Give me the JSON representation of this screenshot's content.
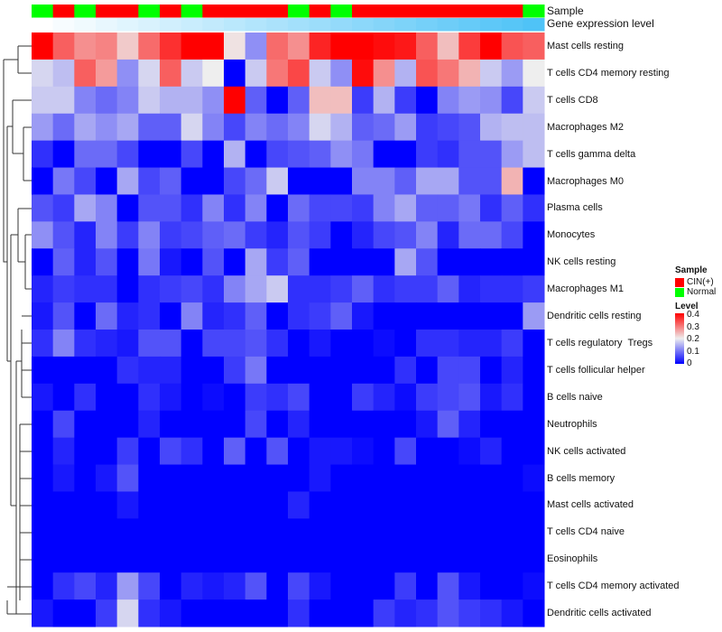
{
  "chart_data": {
    "type": "heatmap",
    "annotations": {
      "sample_label": "Sample",
      "expression_label": "Gene expression level",
      "sample": [
        "Normal",
        "CIN(+)",
        "Normal",
        "CIN(+)",
        "CIN(+)",
        "Normal",
        "CIN(+)",
        "Normal",
        "CIN(+)",
        "CIN(+)",
        "CIN(+)",
        "CIN(+)",
        "Normal",
        "CIN(+)",
        "Normal",
        "CIN(+)",
        "CIN(+)",
        "CIN(+)",
        "CIN(+)",
        "CIN(+)",
        "CIN(+)",
        "CIN(+)",
        "CIN(+)",
        "Normal"
      ],
      "expression_rank": [
        0,
        1,
        2,
        3,
        4,
        5,
        6,
        7,
        8,
        9,
        10,
        11,
        12,
        13,
        14,
        15,
        16,
        17,
        18,
        19,
        20,
        21,
        22,
        23
      ]
    },
    "rows": [
      "Mast cells resting",
      "T cells CD4 memory resting",
      "T cells CD8",
      "Macrophages M2",
      "T cells gamma delta",
      "Macrophages M0",
      "Plasma cells",
      "Monocytes",
      "NK cells resting",
      "Macrophages M1",
      "Dendritic cells resting",
      "T cells regulatory  Tregs",
      "T cells follicular helper",
      "B cells naive",
      "Neutrophils",
      "NK cells activated",
      "B cells memory",
      "Mast cells activated",
      "T cells CD4 naive",
      "Eosinophils",
      "T cells CD4 memory activated",
      "Dendritic cells activated"
    ],
    "values": [
      [
        0.4,
        0.32,
        0.28,
        0.29,
        0.23,
        0.31,
        0.36,
        0.4,
        0.4,
        0.21,
        0.12,
        0.31,
        0.28,
        0.37,
        0.4,
        0.4,
        0.39,
        0.38,
        0.32,
        0.24,
        0.35,
        0.4,
        0.33,
        0.32
      ],
      [
        0.18,
        0.16,
        0.32,
        0.27,
        0.12,
        0.18,
        0.32,
        0.17,
        0.2,
        0,
        0.17,
        0.3,
        0.34,
        0.17,
        0.12,
        0.39,
        0.28,
        0.15,
        0.33,
        0.3,
        0.25,
        0.17,
        0.13,
        0.2
      ],
      [
        0.17,
        0.17,
        0.11,
        0.09,
        0.11,
        0.17,
        0.15,
        0.15,
        0.12,
        0.4,
        0.08,
        0,
        0.08,
        0.24,
        0.24,
        0.05,
        0.15,
        0.05,
        0,
        0.11,
        0.13,
        0.12,
        0.06,
        0.17
      ],
      [
        0.13,
        0.09,
        0.14,
        0.12,
        0.14,
        0.08,
        0.08,
        0.18,
        0.11,
        0.06,
        0.11,
        0.09,
        0.11,
        0.18,
        0.15,
        0.08,
        0.09,
        0.13,
        0.05,
        0.06,
        0.07,
        0.15,
        0.16,
        0.16
      ],
      [
        0.04,
        0,
        0.09,
        0.09,
        0.06,
        0,
        0,
        0.06,
        0,
        0.15,
        0,
        0.06,
        0.07,
        0.08,
        0.12,
        0.1,
        0,
        0,
        0.05,
        0.04,
        0.07,
        0.07,
        0.13,
        0.16
      ],
      [
        0,
        0.1,
        0.06,
        0,
        0.14,
        0.06,
        0.08,
        0,
        0,
        0.06,
        0.09,
        0.17,
        0,
        0,
        0,
        0.11,
        0.11,
        0.08,
        0.14,
        0.14,
        0.07,
        0.07,
        0.25,
        0
      ],
      [
        0.07,
        0.05,
        0.14,
        0.11,
        0,
        0.07,
        0.07,
        0.04,
        0.11,
        0.04,
        0.11,
        0,
        0.09,
        0.06,
        0.06,
        0.05,
        0.11,
        0.14,
        0.08,
        0.08,
        0.1,
        0.04,
        0.08,
        0.04
      ],
      [
        0.12,
        0.07,
        0.03,
        0.11,
        0.05,
        0.11,
        0.05,
        0.06,
        0.08,
        0.09,
        0.05,
        0.03,
        0.07,
        0.05,
        0,
        0.03,
        0.06,
        0.07,
        0.11,
        0.03,
        0.09,
        0.09,
        0.06,
        0
      ],
      [
        0,
        0.08,
        0.03,
        0.07,
        0,
        0.1,
        0.02,
        0,
        0.07,
        0,
        0.14,
        0.05,
        0.08,
        0,
        0,
        0,
        0,
        0.14,
        0.07,
        0,
        0,
        0,
        0,
        0
      ],
      [
        0.03,
        0.05,
        0.04,
        0.04,
        0,
        0.04,
        0.05,
        0.06,
        0.04,
        0.11,
        0.14,
        0.17,
        0.04,
        0.04,
        0.05,
        0.08,
        0.04,
        0.05,
        0.05,
        0.08,
        0.03,
        0.04,
        0.04,
        0.05
      ],
      [
        0.02,
        0.07,
        0,
        0.09,
        0.03,
        0.04,
        0,
        0.11,
        0.03,
        0.04,
        0.08,
        0,
        0.04,
        0.05,
        0.08,
        0.02,
        0,
        0,
        0,
        0,
        0,
        0,
        0,
        0.13
      ],
      [
        0.04,
        0.11,
        0.04,
        0.03,
        0.02,
        0.07,
        0.07,
        0,
        0.06,
        0.06,
        0.07,
        0.04,
        0,
        0.02,
        0,
        0,
        0.01,
        0,
        0.04,
        0.04,
        0.03,
        0.03,
        0.05,
        0
      ],
      [
        0,
        0,
        0,
        0,
        0.04,
        0.03,
        0.03,
        0,
        0,
        0.05,
        0.1,
        0,
        0,
        0,
        0,
        0,
        0,
        0.04,
        0,
        0.06,
        0.06,
        0,
        0.03,
        0
      ],
      [
        0.02,
        0,
        0.04,
        0,
        0,
        0.04,
        0.02,
        0,
        0.01,
        0,
        0.05,
        0.04,
        0.06,
        0,
        0,
        0.05,
        0.03,
        0.01,
        0.05,
        0.06,
        0.07,
        0.02,
        0.04,
        0
      ],
      [
        0,
        0.06,
        0,
        0,
        0,
        0.03,
        0,
        0,
        0,
        0,
        0.06,
        0,
        0.03,
        0,
        0,
        0,
        0,
        0,
        0.02,
        0.08,
        0.03,
        0,
        0,
        0
      ],
      [
        0,
        0.03,
        0,
        0,
        0.05,
        0,
        0.06,
        0.04,
        0,
        0.08,
        0,
        0.07,
        0,
        0.02,
        0.02,
        0.01,
        0,
        0.06,
        0,
        0,
        0.01,
        0.03,
        0,
        0
      ],
      [
        0,
        0.02,
        0,
        0.02,
        0.07,
        0,
        0,
        0,
        0,
        0,
        0,
        0,
        0,
        0.02,
        0,
        0,
        0,
        0,
        0,
        0,
        0,
        0,
        0,
        0.01
      ],
      [
        0,
        0,
        0,
        0,
        0.02,
        0,
        0,
        0,
        0,
        0,
        0,
        0,
        0.03,
        0,
        0,
        0,
        0,
        0,
        0,
        0,
        0,
        0,
        0,
        0
      ],
      [
        0,
        0,
        0,
        0,
        0,
        0,
        0,
        0,
        0,
        0,
        0,
        0,
        0,
        0,
        0,
        0,
        0,
        0,
        0,
        0,
        0,
        0,
        0,
        0
      ],
      [
        0,
        0,
        0,
        0,
        0,
        0,
        0,
        0,
        0,
        0,
        0,
        0,
        0,
        0,
        0,
        0,
        0,
        0,
        0,
        0,
        0,
        0,
        0,
        0
      ],
      [
        0,
        0.04,
        0.06,
        0.03,
        0.13,
        0.06,
        0,
        0.03,
        0.02,
        0.03,
        0.07,
        0,
        0.06,
        0.02,
        0,
        0,
        0,
        0.05,
        0,
        0.07,
        0.02,
        0,
        0,
        0.01
      ],
      [
        0.02,
        0,
        0,
        0.05,
        0.18,
        0.04,
        0.02,
        0,
        0,
        0,
        0,
        0,
        0.04,
        0,
        0,
        0,
        0.05,
        0.03,
        0.04,
        0.07,
        0.05,
        0.04,
        0.02,
        0
      ]
    ],
    "color_range": [
      0,
      0.4
    ],
    "colors": {
      "low": "#0000ff",
      "mid": "#eeeeee",
      "high": "#ff0000",
      "cin": "#ff0000",
      "normal": "#00ff00",
      "expr_low": "#ffffff",
      "expr_high": "#4fc3f7"
    },
    "legend": {
      "sample_title": "Sample",
      "sample_items": [
        "CIN(+)",
        "Normal"
      ],
      "level_title": "Level",
      "level_ticks": [
        "0.4",
        "0.3",
        "0.2",
        "0.1",
        "0"
      ],
      "placement": "right"
    }
  }
}
